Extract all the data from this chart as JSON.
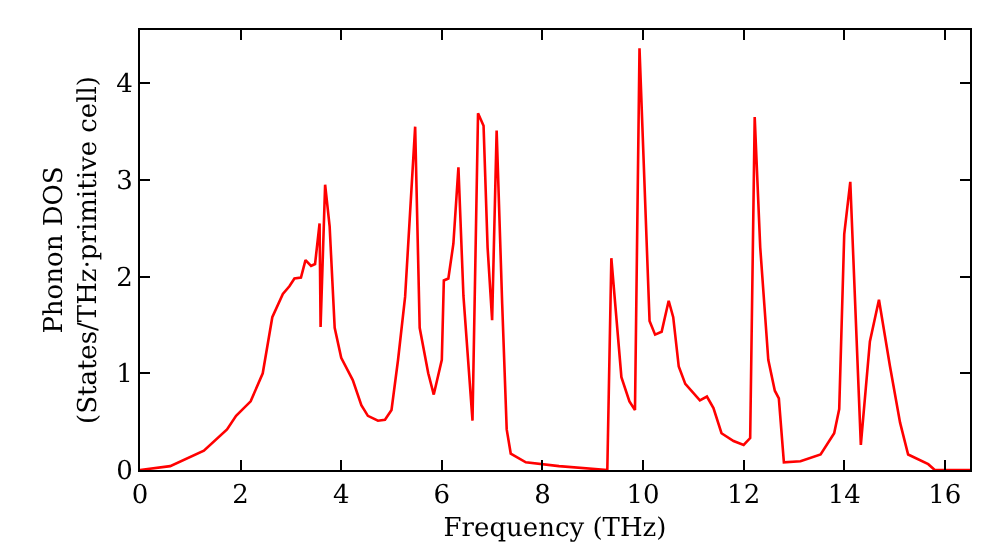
{
  "chart_data": {
    "type": "line",
    "xlabel": "Frequency (THz)",
    "ylabel": "Phonon DOS\n(States/THz·primitive cell)",
    "xlim": [
      0,
      16.5
    ],
    "ylim": [
      0,
      4.55
    ],
    "xticks": [
      0,
      2,
      4,
      6,
      8,
      10,
      12,
      14,
      16
    ],
    "yticks": [
      0,
      1,
      2,
      3,
      4
    ],
    "legend": false,
    "marker": "none",
    "line_style": "solid",
    "x": [
      0,
      0.6,
      1.27,
      1.73,
      1.91,
      2.2,
      2.44,
      2.63,
      2.84,
      2.97,
      3.07,
      3.2,
      3.29,
      3.4,
      3.48,
      3.57,
      3.59,
      3.68,
      3.77,
      3.87,
      4.0,
      4.23,
      4.4,
      4.53,
      4.73,
      4.87,
      5.0,
      5.13,
      5.27,
      5.47,
      5.56,
      5.73,
      5.84,
      6.0,
      6.04,
      6.13,
      6.23,
      6.33,
      6.43,
      6.61,
      6.72,
      6.83,
      6.91,
      7.0,
      7.09,
      7.2,
      7.29,
      7.37,
      7.67,
      8.33,
      9.29,
      9.37,
      9.57,
      9.73,
      9.84,
      9.93,
      10.13,
      10.24,
      10.37,
      10.51,
      10.6,
      10.71,
      10.84,
      11.13,
      11.27,
      11.4,
      11.56,
      11.8,
      12.0,
      12.13,
      12.22,
      12.33,
      12.49,
      12.62,
      12.7,
      12.8,
      13.13,
      13.53,
      13.8,
      13.9,
      14.0,
      14.12,
      14.33,
      14.51,
      14.69,
      14.91,
      15.11,
      15.27,
      15.67,
      15.8,
      16.5
    ],
    "series": [
      {
        "color": "#ff0000",
        "values": [
          0,
          0.04,
          0.2,
          0.42,
          0.56,
          0.71,
          1.0,
          1.58,
          1.82,
          1.9,
          1.98,
          1.99,
          2.17,
          2.11,
          2.13,
          2.55,
          1.48,
          2.95,
          2.52,
          1.47,
          1.16,
          0.93,
          0.67,
          0.56,
          0.51,
          0.52,
          0.62,
          1.14,
          1.79,
          3.55,
          1.47,
          1.0,
          0.78,
          1.14,
          1.96,
          1.98,
          2.34,
          3.13,
          1.8,
          0.51,
          3.69,
          3.56,
          2.3,
          1.55,
          3.51,
          1.72,
          0.42,
          0.17,
          0.08,
          0.04,
          0,
          2.19,
          0.96,
          0.71,
          0.62,
          4.36,
          1.54,
          1.4,
          1.43,
          1.75,
          1.58,
          1.07,
          0.89,
          0.72,
          0.76,
          0.64,
          0.38,
          0.3,
          0.26,
          0.33,
          3.65,
          2.3,
          1.14,
          0.82,
          0.74,
          0.08,
          0.09,
          0.16,
          0.38,
          0.63,
          2.44,
          2.98,
          0.26,
          1.33,
          1.76,
          1.07,
          0.49,
          0.16,
          0.06,
          0,
          0
        ]
      }
    ]
  }
}
